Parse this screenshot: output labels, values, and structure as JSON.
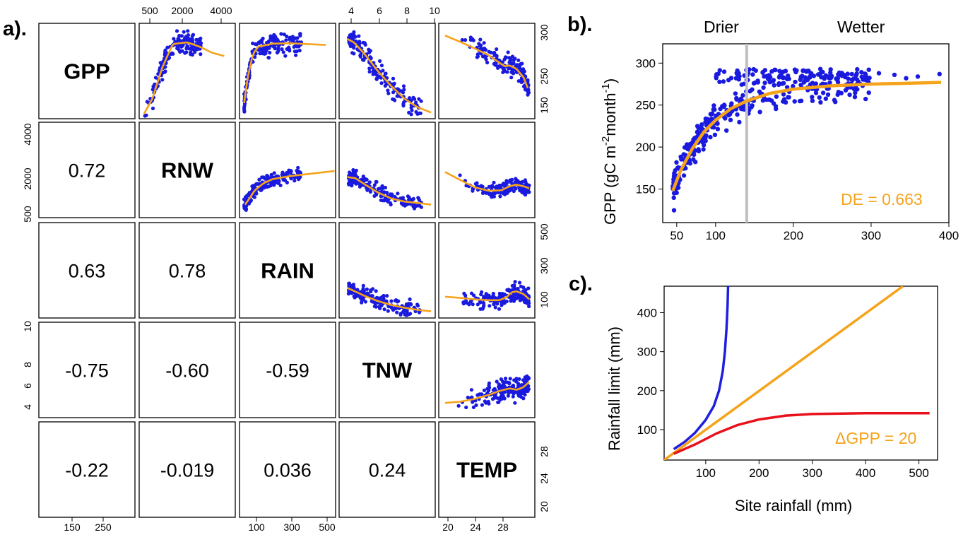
{
  "panel_labels": {
    "a": "a).",
    "b": "b).",
    "c": "c)."
  },
  "colors": {
    "points": "#1a1adf",
    "smooth": "#f5a31a",
    "red": "#e8101a",
    "blue": "#1e1ee0",
    "orange": "#f5a31a",
    "divider": "#bfbfbf"
  },
  "chart_data": [
    {
      "type": "scatter",
      "panel": "a",
      "variables": [
        "GPP",
        "RNW",
        "RAIN",
        "TNW",
        "TEMP"
      ],
      "correlations": {
        "RNW_GPP": "0.72",
        "RAIN_GPP": "0.63",
        "RAIN_RNW": "0.78",
        "TNW_GPP": "-0.75",
        "TNW_RNW": "-0.60",
        "TNW_RAIN": "-0.59",
        "TEMP_GPP": "-0.22",
        "TEMP_RNW": "-0.019",
        "TEMP_RAIN": "0.036",
        "TEMP_TNW": "0.24"
      },
      "ticks": {
        "GPP": [
          "150",
          "250"
        ],
        "RNW": [
          "500",
          "2000",
          "4000"
        ],
        "RAIN": [
          "100",
          "300",
          "500"
        ],
        "TNW": [
          "4",
          "6",
          "8",
          "10"
        ],
        "TEMP": [
          "20",
          "24",
          "28"
        ]
      },
      "ranges": {
        "GPP": [
          110,
          320
        ],
        "RNW": [
          200,
          4600
        ],
        "RAIN": [
          30,
          540
        ],
        "TNW": [
          3.3,
          10.1
        ],
        "TEMP": [
          18.3,
          31.2
        ]
      },
      "smoothers": {
        "GPP_RNW": [
          [
            300,
            115
          ],
          [
            700,
            150
          ],
          [
            1200,
            225
          ],
          [
            1700,
            278
          ],
          [
            2000,
            280
          ],
          [
            2400,
            282
          ],
          [
            3000,
            272
          ],
          [
            3600,
            258
          ],
          [
            4200,
            250
          ]
        ],
        "GPP_RAIN": [
          [
            40,
            140
          ],
          [
            60,
            200
          ],
          [
            90,
            255
          ],
          [
            120,
            272
          ],
          [
            200,
            279
          ],
          [
            300,
            280
          ],
          [
            500,
            276
          ]
        ],
        "GPP_TNW": [
          [
            3.7,
            290
          ],
          [
            4.2,
            282
          ],
          [
            5,
            255
          ],
          [
            6,
            215
          ],
          [
            7,
            180
          ],
          [
            8,
            150
          ],
          [
            9,
            130
          ],
          [
            10,
            118
          ]
        ],
        "GPP_TEMP": [
          [
            18.8,
            298
          ],
          [
            21,
            283
          ],
          [
            23,
            268
          ],
          [
            25,
            252
          ],
          [
            26.5,
            235
          ],
          [
            27.3,
            226
          ],
          [
            28,
            228
          ],
          [
            29,
            220
          ],
          [
            30,
            200
          ],
          [
            30.6,
            175
          ]
        ],
        "RNW_RAIN": [
          [
            45,
            700
          ],
          [
            70,
            1000
          ],
          [
            100,
            1400
          ],
          [
            150,
            1750
          ],
          [
            200,
            1950
          ],
          [
            300,
            2100
          ],
          [
            400,
            2200
          ],
          [
            550,
            2350
          ]
        ],
        "RNW_TNW": [
          [
            3.7,
            2050
          ],
          [
            4.3,
            2000
          ],
          [
            5,
            1700
          ],
          [
            6,
            1300
          ],
          [
            7,
            1000
          ],
          [
            8,
            850
          ],
          [
            9,
            780
          ],
          [
            10,
            700
          ]
        ],
        "RNW_TEMP": [
          [
            18.8,
            2300
          ],
          [
            21,
            1900
          ],
          [
            23,
            1550
          ],
          [
            25,
            1380
          ],
          [
            26.8,
            1400
          ],
          [
            28,
            1600
          ],
          [
            29,
            1680
          ],
          [
            30,
            1600
          ],
          [
            30.8,
            1500
          ]
        ],
        "RAIN_TNW": [
          [
            3.7,
            185
          ],
          [
            4.2,
            168
          ],
          [
            5,
            140
          ],
          [
            6,
            110
          ],
          [
            7,
            88
          ],
          [
            8,
            72
          ],
          [
            9,
            60
          ],
          [
            10,
            52
          ]
        ],
        "RAIN_TEMP": [
          [
            18.8,
            135
          ],
          [
            21,
            128
          ],
          [
            23,
            120
          ],
          [
            25,
            115
          ],
          [
            26.5,
            115
          ],
          [
            27.5,
            130
          ],
          [
            28.3,
            160
          ],
          [
            29,
            165
          ],
          [
            30,
            150
          ],
          [
            30.8,
            120
          ]
        ],
        "TNW_TEMP": [
          [
            18.8,
            4.2
          ],
          [
            21,
            4.3
          ],
          [
            23,
            4.5
          ],
          [
            25,
            4.8
          ],
          [
            26.5,
            5.1
          ],
          [
            28,
            5.3
          ],
          [
            29,
            5.2
          ],
          [
            30,
            5.4
          ],
          [
            30.8,
            5.8
          ]
        ]
      }
    },
    {
      "type": "scatter",
      "panel": "b",
      "ylabel_base": "GPP (gC m",
      "ylabel_sup1": "-2",
      "ylabel_mid": "month",
      "ylabel_sup2": "-1",
      "ylabel_end": ")",
      "region_labels": [
        "Drier",
        "Wetter"
      ],
      "divider_x": 140,
      "annotation": "DE = 0.663",
      "xlim": [
        32,
        400
      ],
      "ylim": [
        110,
        323
      ],
      "xticks": [
        "50",
        "100",
        "200",
        "300",
        "400"
      ],
      "yticks": [
        "150",
        "200",
        "250",
        "300"
      ],
      "fit": [
        [
          45,
          148
        ],
        [
          55,
          172
        ],
        [
          70,
          198
        ],
        [
          85,
          218
        ],
        [
          100,
          232
        ],
        [
          120,
          246
        ],
        [
          140,
          255
        ],
        [
          170,
          264
        ],
        [
          200,
          269
        ],
        [
          250,
          273
        ],
        [
          300,
          275
        ],
        [
          350,
          276
        ],
        [
          390,
          277
        ]
      ]
    },
    {
      "type": "line",
      "panel": "c",
      "xlabel": "Site rainfall (mm)",
      "ylabel": "Rainfall limit (mm)",
      "annotation": "ΔGPP =  20",
      "xlim": [
        22,
        535
      ],
      "ylim": [
        22,
        468
      ],
      "xticks": [
        "100",
        "200",
        "300",
        "400",
        "500"
      ],
      "yticks": [
        "100",
        "200",
        "300",
        "400"
      ],
      "series": [
        {
          "color": "blue",
          "points": [
            [
              40,
              50
            ],
            [
              60,
              68
            ],
            [
              80,
              92
            ],
            [
              100,
              125
            ],
            [
              115,
              160
            ],
            [
              125,
              200
            ],
            [
              132,
              250
            ],
            [
              136,
              300
            ],
            [
              139,
              360
            ],
            [
              141,
              420
            ],
            [
              142,
              468
            ]
          ]
        },
        {
          "color": "orange",
          "points": [
            [
              22,
              22
            ],
            [
              470,
              468
            ]
          ]
        },
        {
          "color": "red",
          "points": [
            [
              40,
              38
            ],
            [
              80,
              62
            ],
            [
              120,
              90
            ],
            [
              160,
              112
            ],
            [
              200,
              126
            ],
            [
              250,
              136
            ],
            [
              300,
              140
            ],
            [
              400,
              142
            ],
            [
              520,
              142
            ]
          ]
        }
      ]
    }
  ]
}
